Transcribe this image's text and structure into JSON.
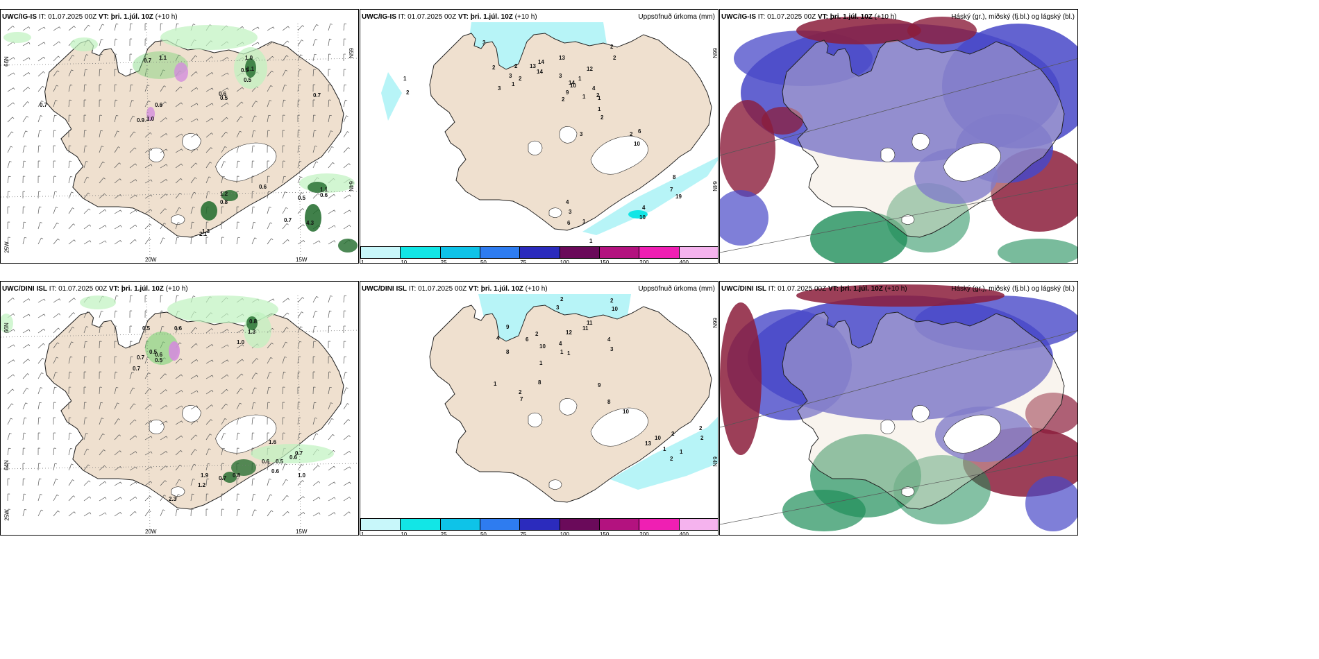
{
  "colors": {
    "land": "#efe0cf",
    "glacier": "#ffffff",
    "coast": "#222222",
    "precip_light": "#bff2bf",
    "precip_mid": "#6fd36f",
    "precip_dark": "#1f6a2a",
    "accum_cyan": "#b7f4f7",
    "cloud_high": "#1f8e5a",
    "cloud_mid": "#8b1d3b",
    "cloud_low": "#4848c8"
  },
  "legend": {
    "colors": [
      "#c8f7fa",
      "#12e6e6",
      "#0ec3e8",
      "#2e7cf0",
      "#2b2bbd",
      "#6a0a5a",
      "#b3127f",
      "#ef1fb3",
      "#f5b3ee"
    ],
    "labels": [
      "1",
      "10",
      "25",
      "50",
      "75",
      "100",
      "150",
      "200",
      "400"
    ]
  },
  "panels": [
    {
      "id": "top-left",
      "model": "UWC/IG-IS",
      "it_label": "IT:",
      "it_value": "01.07.2025 00Z",
      "vt_label": "VT:",
      "vt_value": "þri. 1.júl. 10Z",
      "lead": "(+10 h)",
      "right_title": "",
      "grid_labels": [
        "66N",
        "65N",
        "64N",
        "25W",
        "20W",
        "15W"
      ],
      "values": [
        "0.7",
        "1.1",
        "0.5",
        "1.0",
        "1.1",
        "0.5",
        "0.6",
        "0.5",
        "0.6",
        "0.7",
        "0.9",
        "1.0",
        "0.7",
        "1.2",
        "0.8",
        "0.6",
        "1.3",
        "2.1",
        "0.5",
        "1.1",
        "0.6",
        "0.7",
        "4.3"
      ]
    },
    {
      "id": "top-middle",
      "model": "UWC/IG-IS",
      "it_label": "IT:",
      "it_value": "01.07.2025 00Z",
      "vt_label": "VT:",
      "vt_value": "þri. 1.júl. 10Z",
      "lead": "(+10 h)",
      "right_title": "Uppsöfnuð úrkoma (mm)",
      "grid_labels": [
        "66N",
        "64N"
      ],
      "values": [
        "3",
        "2",
        "1",
        "2",
        "3",
        "2",
        "1",
        "3",
        "2",
        "13",
        "14",
        "14",
        "13",
        "12",
        "2",
        "2",
        "3",
        "14",
        "9",
        "10",
        "2",
        "4",
        "2",
        "1",
        "1",
        "1",
        "1",
        "2",
        "3",
        "2",
        "6",
        "10",
        "8",
        "7",
        "19",
        "10",
        "4",
        "3",
        "6",
        "4",
        "1",
        "1"
      ]
    },
    {
      "id": "top-right",
      "model": "UWC/IG-IS",
      "it_label": "IT:",
      "it_value": "01.07.2025 00Z",
      "vt_label": "VT:",
      "vt_value": "þri. 1.júl. 10Z",
      "lead": "(+10 h)",
      "right_title": "Háský (gr.), miðský (fj.bl.) og lágský (bl.)",
      "grid_labels": [],
      "values": []
    },
    {
      "id": "bottom-left",
      "model": "UWC/DINI ISL",
      "it_label": "IT:",
      "it_value": "01.07.2025 00Z",
      "vt_label": "VT:",
      "vt_value": "þri. 1.júl. 10Z",
      "lead": "(+10 h)",
      "right_title": "",
      "grid_labels": [
        "66N",
        "64N",
        "25W",
        "20W",
        "15W"
      ],
      "values": [
        "0.5",
        "0.6",
        "0.8",
        "1.3",
        "1.0",
        "0.7",
        "0.7",
        "0.5",
        "0.6",
        "0.5",
        "1.6",
        "0.6",
        "0.5",
        "0.6",
        "0.7",
        "0.6",
        "1.0",
        "1.9",
        "1.2",
        "0.7",
        "0.8",
        "2.3"
      ]
    },
    {
      "id": "bottom-middle",
      "model": "UWC/DINI ISL",
      "it_label": "IT:",
      "it_value": "01.07.2025 00Z",
      "vt_label": "VT:",
      "vt_value": "þri. 1.júl. 10Z",
      "lead": "(+10 h)",
      "right_title": "Uppsöfnuð úrkoma (mm)",
      "grid_labels": [
        "66N",
        "64N"
      ],
      "values": [
        "2",
        "3",
        "2",
        "10",
        "12",
        "11",
        "11",
        "4",
        "3",
        "9",
        "4",
        "8",
        "6",
        "2",
        "10",
        "4",
        "1",
        "1",
        "1",
        "1",
        "2",
        "7",
        "8",
        "9",
        "8",
        "10",
        "13",
        "10",
        "2",
        "1",
        "1",
        "2",
        "2",
        "2"
      ]
    },
    {
      "id": "bottom-right",
      "model": "UWC/DINI ISL",
      "it_label": "IT:",
      "it_value": "01.07.2025 00Z",
      "vt_label": "VT:",
      "vt_value": "þri. 1.júl. 10Z",
      "lead": "(+10 h)",
      "right_title": "Háský (gr.), miðský (fj.bl.) og lágský (bl.)",
      "grid_labels": [],
      "values": []
    }
  ]
}
